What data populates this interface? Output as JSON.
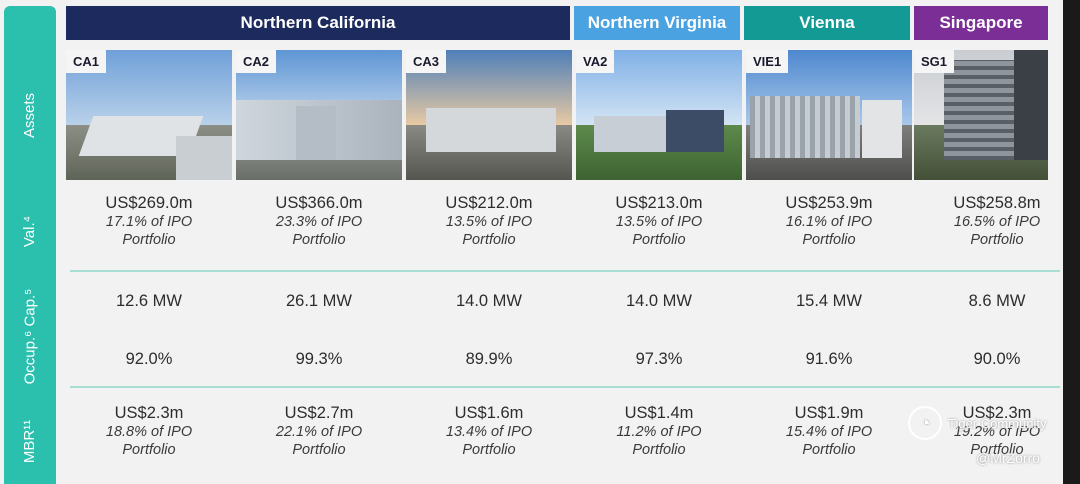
{
  "colors": {
    "teal": "#2bbfae",
    "navy": "#1c2a5e",
    "light_blue": "#4aa3e0",
    "teal_dark": "#149a94",
    "purple": "#7b2f96"
  },
  "rows": {
    "assets": "Assets",
    "valuation": "Val.⁴",
    "capacity": "Occup.⁶ Cap.⁵",
    "mbr": "MBR¹¹"
  },
  "regions": [
    {
      "label": "Northern California",
      "color": "#1c2a5e"
    },
    {
      "label": "Northern Virginia",
      "color": "#4aa3e0"
    },
    {
      "label": "Vienna",
      "color": "#149a94"
    },
    {
      "label": "Singapore",
      "color": "#7b2f96"
    }
  ],
  "assets": [
    {
      "code": "CA1",
      "valuation": "US$269.0m",
      "val_pct": "17.1% of IPO",
      "val_note": "Portfolio",
      "capacity": "12.6 MW",
      "occupancy": "92.0%",
      "mbr": "US$2.3m",
      "mbr_pct": "18.8% of IPO",
      "mbr_note": "Portfolio"
    },
    {
      "code": "CA2",
      "valuation": "US$366.0m",
      "val_pct": "23.3% of IPO",
      "val_note": "Portfolio",
      "capacity": "26.1 MW",
      "occupancy": "99.3%",
      "mbr": "US$2.7m",
      "mbr_pct": "22.1% of IPO",
      "mbr_note": "Portfolio"
    },
    {
      "code": "CA3",
      "valuation": "US$212.0m",
      "val_pct": "13.5% of IPO",
      "val_note": "Portfolio",
      "capacity": "14.0 MW",
      "occupancy": "89.9%",
      "mbr": "US$1.6m",
      "mbr_pct": "13.4% of IPO",
      "mbr_note": "Portfolio"
    },
    {
      "code": "VA2",
      "valuation": "US$213.0m",
      "val_pct": "13.5% of IPO",
      "val_note": "Portfolio",
      "capacity": "14.0 MW",
      "occupancy": "97.3%",
      "mbr": "US$1.4m",
      "mbr_pct": "11.2% of IPO",
      "mbr_note": "Portfolio"
    },
    {
      "code": "VIE1",
      "valuation": "US$253.9m",
      "val_pct": "16.1% of IPO",
      "val_note": "Portfolio",
      "capacity": "15.4 MW",
      "occupancy": "91.6%",
      "mbr": "US$1.9m",
      "mbr_pct": "15.4% of IPO",
      "mbr_note": "Portfolio"
    },
    {
      "code": "SG1",
      "valuation": "US$258.8m",
      "val_pct": "16.5% of IPO",
      "val_note": "Portfolio",
      "capacity": "8.6 MW",
      "occupancy": "90.0%",
      "mbr": "US$2.3m",
      "mbr_pct": "19.2% of IPO",
      "mbr_note": "Portfolio"
    }
  ],
  "watermark": {
    "brand": "Tiger Community",
    "handle": "@MrZorro"
  }
}
